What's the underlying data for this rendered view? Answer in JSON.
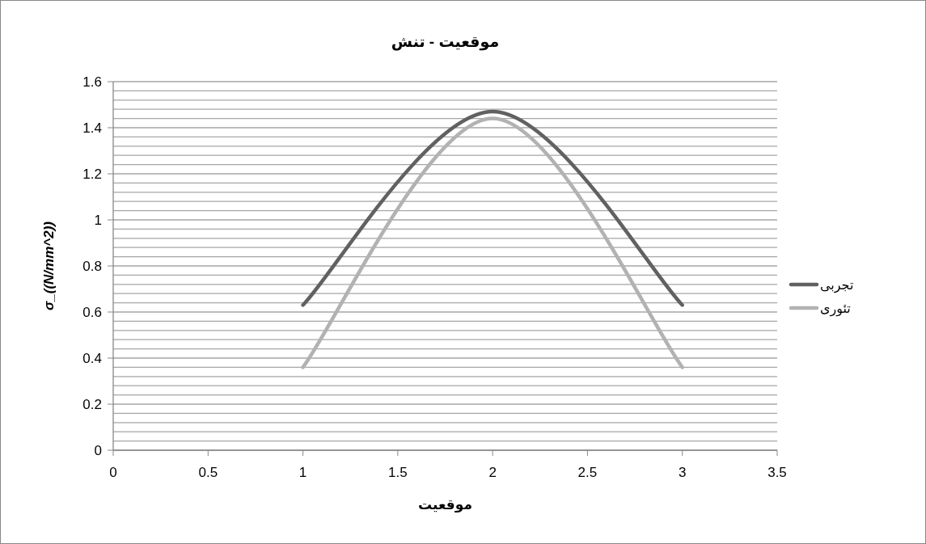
{
  "chart_data": {
    "type": "line",
    "title": "موقعیت - تنش",
    "xlabel": "موقعیت",
    "ylabel": "σ_((N/mm^2))",
    "x": [
      1,
      2,
      3
    ],
    "series": [
      {
        "name": "تجربی",
        "color": "#616161",
        "values": [
          0.63,
          1.47,
          0.63
        ]
      },
      {
        "name": "تئوری",
        "color": "#b2b2b2",
        "values": [
          0.36,
          1.44,
          0.36
        ]
      }
    ],
    "xlim": [
      0,
      3.5
    ],
    "xticks": [
      0,
      0.5,
      1,
      1.5,
      2,
      2.5,
      3,
      3.5
    ],
    "ylim": [
      0,
      1.6
    ],
    "yticks": [
      0,
      {
        "value": 0.04,
        "label": null
      },
      {
        "value": 0.08,
        "label": null
      },
      {
        "value": 0.12,
        "label": null
      },
      {
        "value": 0.16,
        "label": null
      },
      0.2,
      {
        "value": 0.24,
        "label": null
      },
      {
        "value": 0.28,
        "label": null
      },
      {
        "value": 0.32,
        "label": null
      },
      {
        "value": 0.36,
        "label": null
      },
      0.4,
      {
        "value": 0.44,
        "label": null
      },
      {
        "value": 0.48,
        "label": null
      },
      {
        "value": 0.52,
        "label": null
      },
      {
        "value": 0.56,
        "label": null
      },
      0.6,
      {
        "value": 0.64,
        "label": null
      },
      {
        "value": 0.68,
        "label": null
      },
      {
        "value": 0.72,
        "label": null
      },
      {
        "value": 0.76,
        "label": null
      },
      0.8,
      {
        "value": 0.84,
        "label": null
      },
      {
        "value": 0.88,
        "label": null
      },
      {
        "value": 0.92,
        "label": null
      },
      {
        "value": 0.96,
        "label": null
      },
      1,
      {
        "value": 1.04,
        "label": null
      },
      {
        "value": 1.08,
        "label": null
      },
      {
        "value": 1.12,
        "label": null
      },
      {
        "value": 1.16,
        "label": null
      },
      1.2,
      {
        "value": 1.24,
        "label": null
      },
      {
        "value": 1.28,
        "label": null
      },
      {
        "value": 1.32,
        "label": null
      },
      {
        "value": 1.36,
        "label": null
      },
      1.4,
      {
        "value": 1.44,
        "label": null
      },
      {
        "value": 1.48,
        "label": null
      },
      {
        "value": 1.52,
        "label": null
      },
      {
        "value": 1.56,
        "label": null
      },
      1.6
    ],
    "grid": "y",
    "legend": "right",
    "marker": "none",
    "line_style": "solid"
  }
}
